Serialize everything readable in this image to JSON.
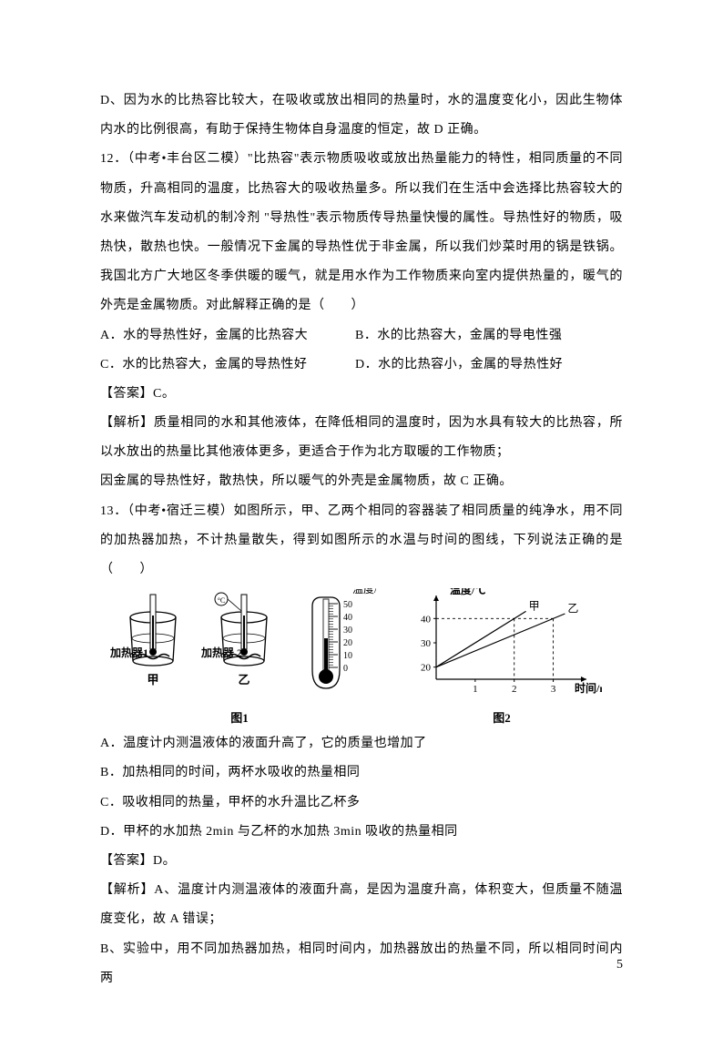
{
  "p": {
    "d_line": "D、因为水的比热容比较大，在吸收或放出相同的热量时，水的温度变化小，因此生物体内水的比例很高，有助于保持生物体自身温度的恒定，故 D 正确。",
    "q12_stem": "12．（中考•丰台区二模）\"比热容\"表示物质吸收或放出热量能力的特性，相同质量的不同物质，升高相同的温度，比热容大的吸收热量多。所以我们在生活中会选择比热容较大的水来做汽车发动机的制冷剂 \"导热性\"表示物质传导热量快慢的属性。导热性好的物质，吸热快，散热也快。一般情况下金属的导热性优于非金属，所以我们炒菜时用的锅是铁锅。我国北方广大地区冬季供暖的暖气，就是用水作为工作物质来向室内提供热量的，暖气的外壳是金属物质。对此解释正确的是（　　）",
    "q12_a": "A．水的导热性好，金属的比热容大",
    "q12_b": "B．水的比热容大，金属的导电性强",
    "q12_c": "C．水的比热容大，金属的导热性好",
    "q12_d": "D．水的比热容小，金属的导热性好",
    "q12_ans": "【答案】C。",
    "q12_exp1": "【解析】质量相同的水和其他液体，在降低相同的温度时，因为水具有较大的比热容，所以水放出的热量比其他液体更多，更适合于作为北方取暖的工作物质；",
    "q12_exp2": "因金属的导热性好，散热快，所以暖气的外壳是金属物质，故 C 正确。",
    "q13_stem": "13．（中考•宿迁三模）如图所示，甲、乙两个相同的容器装了相同质量的纯净水，用不同的加热器加热，不计热量散失，得到如图所示的水温与时间的图线，下列说法正确的是（　　）",
    "q13_a": "A．温度计内测温液体的液面升高了，它的质量也增加了",
    "q13_b": "B．加热相同的时间，两杯水吸收的热量相同",
    "q13_c": "C．吸收相同的热量，甲杯的水升温比乙杯多",
    "q13_d": "D．甲杯的水加热 2min 与乙杯的水加热 3min 吸收的热量相同",
    "q13_ans": "【答案】D。",
    "q13_exp_a": "【解析】A、温度计内测温液体的液面升高，是因为温度升高，体积变大，但质量不随温度变化，故 A 错误；",
    "q13_exp_b": "B、实验中，用不同加热器加热，相同时间内，加热器放出的热量不同，所以相同时间内两"
  },
  "fig": {
    "fig1_label": "图1",
    "fig2_label": "图2",
    "heater1": "加热器1",
    "heater2": "加热器 2",
    "cup_a": "甲",
    "cup_b": "乙",
    "temp_axis": "温度/℃",
    "time_axis": "时间/min",
    "therm_scale": {
      "min": 0,
      "max": 50,
      "step": 10
    },
    "chart": {
      "type": "line",
      "x_ticks": [
        1,
        2,
        3
      ],
      "y_ticks": [
        20,
        30,
        40
      ],
      "y_start": 20,
      "series": [
        {
          "name": "甲",
          "points": [
            [
              0,
              20
            ],
            [
              2,
              40
            ]
          ],
          "dash_x": 2
        },
        {
          "name": "乙",
          "points": [
            [
              0,
              20
            ],
            [
              3,
              40
            ]
          ],
          "dash_x": 3
        }
      ],
      "line_color": "#000000",
      "line_width": 1.2,
      "dash_color": "#000000",
      "bg": "#ffffff"
    }
  },
  "page_number": "5"
}
